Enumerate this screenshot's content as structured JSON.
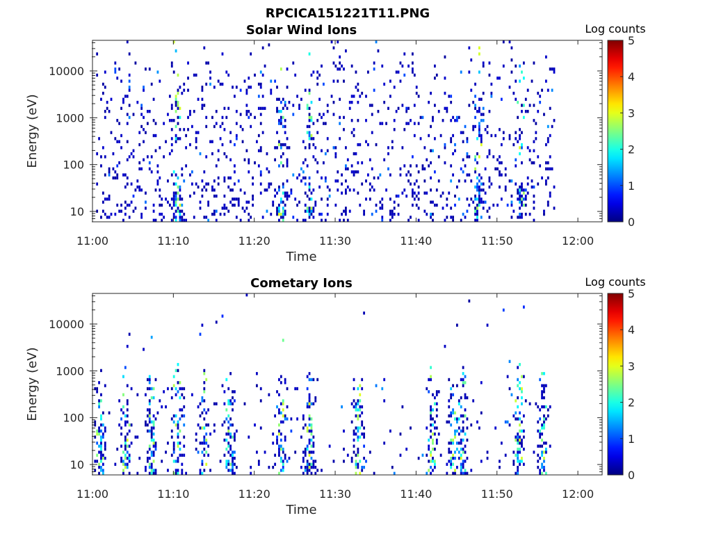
{
  "figure_title": "RPCICA151221T11.PNG",
  "chart_data": [
    {
      "type": "heatmap",
      "title": "Solar Wind Ions",
      "xlabel": "Time",
      "ylabel": "Energy (eV)",
      "x_ticks": [
        "11:00",
        "11:10",
        "11:20",
        "11:30",
        "11:40",
        "11:50",
        "12:00"
      ],
      "xlim_minutes": [
        0,
        63
      ],
      "data_extent_minutes": [
        0,
        57
      ],
      "y_ticks": [
        10,
        100,
        1000,
        10000
      ],
      "y_scale": "log",
      "ylim": [
        6,
        45000
      ],
      "colorbar": {
        "label": "Log counts",
        "ticks": [
          0,
          1,
          2,
          3,
          4,
          5
        ],
        "range": [
          0,
          5
        ],
        "colormap": "jet"
      },
      "notable_bursts_minutes": [
        10.3,
        23.2,
        26.7,
        47.6,
        52.8
      ],
      "max_level_observed": 3
    },
    {
      "type": "heatmap",
      "title": "Cometary Ions",
      "xlabel": "Time",
      "ylabel": "Energy (eV)",
      "x_ticks": [
        "11:00",
        "11:10",
        "11:20",
        "11:30",
        "11:40",
        "11:50",
        "12:00"
      ],
      "xlim_minutes": [
        0,
        63
      ],
      "data_extent_minutes": [
        0,
        57
      ],
      "y_ticks": [
        10,
        100,
        1000,
        10000
      ],
      "y_scale": "log",
      "ylim": [
        6,
        45000
      ],
      "colorbar": {
        "label": "Log counts",
        "ticks": [
          0,
          1,
          2,
          3,
          4,
          5
        ],
        "range": [
          0,
          5
        ],
        "colormap": "jet"
      },
      "notable_bursts_minutes": [
        0.8,
        4.0,
        7.2,
        10.4,
        13.7,
        16.9,
        23.2,
        26.7,
        32.7,
        41.9,
        44.5,
        45.6,
        52.6,
        55.6
      ],
      "max_level_observed": 3
    }
  ]
}
